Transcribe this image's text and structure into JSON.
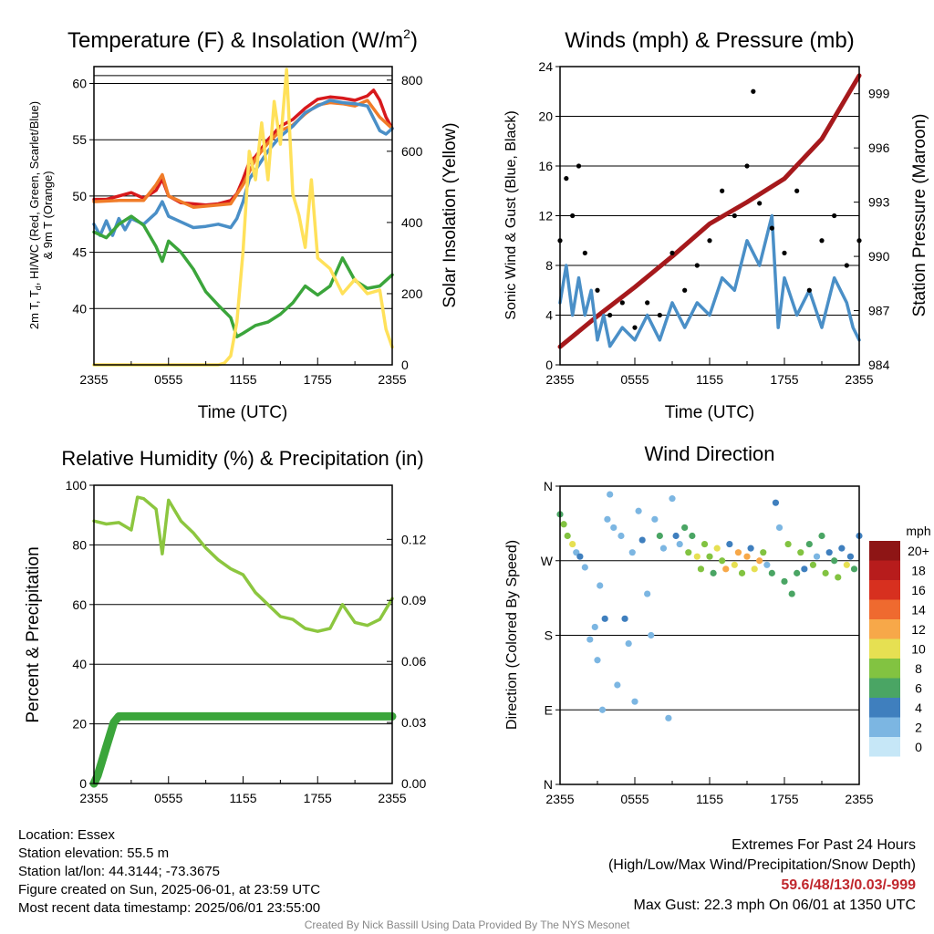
{
  "chart_data": [
    {
      "type": "line",
      "title": "Temperature (F) & Insolation (W/m²)",
      "title_main": "Temperature (F) & Insolation (W/m",
      "title_sup": "2",
      "title_close": ")",
      "xlabel": "Time (UTC)",
      "ylabel_line1": "2m T, T",
      "ylabel_sub": "d",
      "ylabel_line1_rest": ", HI/WC (Red, Green, Scarlet/Blue)",
      "ylabel_line2": "& 9m T (Orange)",
      "y2label": "Solar Insolation (Yellow)",
      "x_ticks": [
        "2355",
        "0555",
        "1155",
        "1755",
        "2355"
      ],
      "y_ticks": [
        "40",
        "45",
        "50",
        "55",
        "60"
      ],
      "y2_ticks": [
        "0",
        "200",
        "400",
        "600",
        "800"
      ],
      "ylim": [
        35,
        61.5
      ],
      "y2lim": [
        0,
        838
      ],
      "series": [
        {
          "color": "#d7191c",
          "x": [
            0,
            1,
            2,
            3,
            4,
            5,
            5.5,
            6,
            7,
            8,
            9,
            10,
            11,
            11.5,
            12,
            12.5,
            13,
            14,
            15,
            16,
            17,
            18,
            19,
            20,
            21,
            22,
            22.5,
            23,
            23.5,
            24
          ],
          "values": [
            49.7,
            49.7,
            50,
            50.3,
            49.8,
            50.5,
            51.5,
            50,
            49.4,
            49.3,
            49.2,
            49.3,
            49.6,
            50.2,
            51.5,
            53,
            53.5,
            55,
            56.2,
            56.8,
            57.8,
            58.6,
            58.8,
            58.7,
            58.5,
            58.9,
            59.4,
            58.5,
            57,
            56
          ]
        },
        {
          "color": "#f07c29",
          "x": [
            0,
            2,
            4,
            5,
            5.5,
            6,
            8,
            11,
            12,
            13,
            14,
            15,
            16,
            17,
            18,
            19,
            20,
            21,
            22,
            23,
            24
          ],
          "values": [
            49.5,
            49.6,
            49.6,
            51,
            51.9,
            50,
            49,
            49.3,
            51,
            53.3,
            54.7,
            55.8,
            56.3,
            57.3,
            58.1,
            58.3,
            58.2,
            58,
            58.5,
            57,
            56
          ]
        },
        {
          "color": "#4a8fc7",
          "x": [
            0,
            0.5,
            1,
            1.5,
            2,
            2.5,
            3,
            4,
            5,
            5.5,
            6,
            7,
            8,
            9,
            10,
            11,
            11.5,
            12,
            12.5,
            13,
            14,
            15,
            16,
            17,
            18,
            19,
            20,
            21,
            22,
            23,
            23.5,
            24
          ],
          "values": [
            47.5,
            46.5,
            47.8,
            46.5,
            48,
            47,
            48,
            47.5,
            48.5,
            49.5,
            48.2,
            47.7,
            47.2,
            47.3,
            47.5,
            47.2,
            48,
            49.5,
            51.5,
            52.3,
            54,
            55.3,
            56.2,
            57.4,
            58,
            58.5,
            58.3,
            58.2,
            58,
            55.8,
            55.5,
            56
          ]
        },
        {
          "color": "#3ba53b",
          "x": [
            0,
            1,
            2,
            3,
            4,
            5,
            5.5,
            6,
            7,
            8,
            9,
            10,
            11,
            11.5,
            12,
            13,
            14,
            15,
            16,
            17,
            18,
            19,
            20,
            21,
            22,
            23,
            24
          ],
          "values": [
            46.8,
            46.3,
            47.5,
            48.2,
            47.4,
            45.5,
            44.2,
            46,
            45,
            43.5,
            41.5,
            40.3,
            39.2,
            37.5,
            37.8,
            38.5,
            38.8,
            39.5,
            40.5,
            42,
            41.2,
            42,
            44.5,
            42.5,
            41.8,
            42,
            43
          ]
        },
        {
          "color": "#ffe15a",
          "x": [
            0,
            2,
            4,
            6,
            8,
            9,
            10,
            10.5,
            11,
            11.5,
            12,
            12.5,
            13,
            13.5,
            14,
            14.5,
            15,
            15.5,
            16,
            16.5,
            17,
            17.5,
            18,
            19,
            20,
            21,
            22,
            23,
            23.5,
            24
          ],
          "values": [
            0,
            0,
            0,
            0,
            0,
            0,
            0,
            5,
            25,
            120,
            320,
            600,
            520,
            680,
            520,
            740,
            620,
            830,
            480,
            420,
            330,
            520,
            300,
            270,
            200,
            240,
            200,
            210,
            100,
            50
          ]
        }
      ]
    },
    {
      "type": "line",
      "title": "Winds (mph) & Pressure (mb)",
      "xlabel": "Time (UTC)",
      "ylabel": "Sonic Wind & Gust (Blue, Black)",
      "y2label": "Station Pressure (Maroon)",
      "x_ticks": [
        "2355",
        "0555",
        "1155",
        "1755",
        "2355"
      ],
      "y_ticks": [
        "0",
        "4",
        "8",
        "12",
        "16",
        "20",
        "24"
      ],
      "y2_ticks": [
        "984",
        "987",
        "990",
        "993",
        "996",
        "999"
      ],
      "ylim": [
        0,
        24
      ],
      "y2lim": [
        984,
        1000.5
      ],
      "series": [
        {
          "color": "#a6191c",
          "x": [
            0,
            3,
            6,
            9,
            12,
            15,
            18,
            21,
            24
          ],
          "values": [
            985,
            986.7,
            988.3,
            990,
            991.8,
            993,
            994.3,
            996.5,
            1000
          ]
        },
        {
          "color": "#4a8fc7",
          "x": [
            0,
            0.5,
            1,
            1.5,
            2,
            2.5,
            3,
            3.5,
            4,
            5,
            6,
            7,
            8,
            9,
            10,
            11,
            12,
            13,
            14,
            15,
            16,
            17,
            17.5,
            18,
            19,
            20,
            21,
            22,
            23,
            23.5,
            24
          ],
          "values": [
            5,
            8,
            4,
            7,
            4,
            6,
            2,
            4,
            1.5,
            3,
            2,
            4,
            2,
            5,
            3,
            5,
            4,
            7,
            6,
            10,
            8,
            12,
            3,
            7,
            4,
            6,
            3,
            7,
            5,
            3,
            2
          ]
        },
        {
          "color": "#000000",
          "x": [
            0,
            0.5,
            1,
            1.5,
            2,
            3,
            4,
            5,
            6,
            7,
            8,
            9,
            10,
            11,
            12,
            13,
            14,
            15,
            15.5,
            16,
            17,
            18,
            19,
            20,
            21,
            22,
            23,
            24
          ],
          "values": [
            10,
            15,
            12,
            16,
            9,
            6,
            4,
            5,
            3,
            5,
            4,
            9,
            6,
            8,
            10,
            14,
            12,
            16,
            22,
            13,
            11,
            9,
            14,
            6,
            10,
            12,
            8,
            10
          ]
        }
      ]
    },
    {
      "type": "line",
      "title": "Relative Humidity (%) & Precipitation (in)",
      "ylabel": "Percent & Precipitation",
      "x_ticks": [
        "2355",
        "0555",
        "1155",
        "1755",
        "2355"
      ],
      "y_ticks": [
        "0",
        "20",
        "40",
        "60",
        "80",
        "100"
      ],
      "y2_ticks": [
        "0.00",
        "0.03",
        "0.06",
        "0.09",
        "0.12"
      ],
      "ylim": [
        0,
        100
      ],
      "y2lim": [
        0,
        0.1466
      ],
      "series": [
        {
          "color": "#8cc63f",
          "x": [
            0,
            1,
            2,
            3,
            3.5,
            4,
            5,
            5.5,
            6,
            7,
            8,
            9,
            10,
            11,
            12,
            13,
            14,
            15,
            16,
            17,
            18,
            19,
            20,
            21,
            22,
            23,
            24
          ],
          "values": [
            88,
            87,
            87.5,
            85,
            96,
            95.5,
            92,
            77,
            95,
            88,
            84,
            79,
            75,
            72,
            70,
            64,
            60,
            56,
            55,
            52,
            51,
            52,
            60,
            54,
            53,
            55,
            62
          ]
        },
        {
          "color": "#3ba53b",
          "x": [
            0,
            0.3,
            0.6,
            1,
            1.3,
            1.6,
            2,
            24
          ],
          "values": [
            0,
            0.004,
            0.01,
            0.018,
            0.024,
            0.03,
            0.033,
            0.033
          ]
        }
      ]
    },
    {
      "type": "scatter",
      "title": "Wind Direction",
      "ylabel": "Direction (Colored By Speed)",
      "x_ticks": [
        "2355",
        "0555",
        "1155",
        "1755",
        "2355"
      ],
      "y_ticks": [
        "N",
        "E",
        "S",
        "W",
        "N"
      ],
      "ylim": [
        0,
        360
      ],
      "legend_title": "mph",
      "legend_labels": [
        "0",
        "2",
        "4",
        "6",
        "8",
        "10",
        "12",
        "14",
        "16",
        "18",
        "20+"
      ],
      "legend_colors": [
        "#c6e7f7",
        "#7cb6e2",
        "#3f7fbe",
        "#4aa564",
        "#82c341",
        "#e6e052",
        "#f7a849",
        "#ef6a2f",
        "#d7301f",
        "#b71c1c",
        "#8e1515"
      ],
      "points": [
        [
          0,
          326,
          6
        ],
        [
          0.3,
          314,
          8
        ],
        [
          0.6,
          300,
          8
        ],
        [
          1,
          290,
          10
        ],
        [
          1.3,
          280,
          2
        ],
        [
          1.6,
          275,
          4
        ],
        [
          2,
          262,
          2
        ],
        [
          2.4,
          175,
          2
        ],
        [
          2.8,
          190,
          2
        ],
        [
          3,
          150,
          2
        ],
        [
          3.2,
          240,
          2
        ],
        [
          3.4,
          90,
          2
        ],
        [
          3.6,
          200,
          4
        ],
        [
          3.8,
          320,
          2
        ],
        [
          4,
          350,
          2
        ],
        [
          4.3,
          310,
          2
        ],
        [
          4.6,
          120,
          2
        ],
        [
          4.9,
          300,
          2
        ],
        [
          5.2,
          200,
          4
        ],
        [
          5.5,
          170,
          2
        ],
        [
          5.8,
          280,
          2
        ],
        [
          6,
          100,
          2
        ],
        [
          6.3,
          330,
          2
        ],
        [
          6.6,
          295,
          4
        ],
        [
          7,
          230,
          2
        ],
        [
          7.3,
          180,
          2
        ],
        [
          7.6,
          320,
          2
        ],
        [
          8,
          300,
          6
        ],
        [
          8.3,
          285,
          2
        ],
        [
          8.7,
          80,
          2
        ],
        [
          9,
          345,
          2
        ],
        [
          9.3,
          300,
          4
        ],
        [
          9.6,
          290,
          2
        ],
        [
          10,
          310,
          6
        ],
        [
          10.3,
          280,
          8
        ],
        [
          10.6,
          300,
          6
        ],
        [
          11,
          275,
          10
        ],
        [
          11.3,
          260,
          8
        ],
        [
          11.6,
          290,
          8
        ],
        [
          12,
          275,
          8
        ],
        [
          12.3,
          255,
          6
        ],
        [
          12.6,
          285,
          10
        ],
        [
          13,
          270,
          8
        ],
        [
          13.3,
          260,
          12
        ],
        [
          13.6,
          290,
          4
        ],
        [
          14,
          265,
          10
        ],
        [
          14.3,
          280,
          12
        ],
        [
          14.6,
          255,
          8
        ],
        [
          15,
          275,
          12
        ],
        [
          15.3,
          285,
          4
        ],
        [
          15.6,
          260,
          10
        ],
        [
          16,
          270,
          12
        ],
        [
          16.3,
          280,
          8
        ],
        [
          16.6,
          265,
          2
        ],
        [
          17,
          255,
          6
        ],
        [
          17.3,
          340,
          4
        ],
        [
          17.6,
          310,
          2
        ],
        [
          18,
          245,
          6
        ],
        [
          18.3,
          290,
          8
        ],
        [
          18.6,
          230,
          6
        ],
        [
          19,
          255,
          6
        ],
        [
          19.3,
          280,
          8
        ],
        [
          19.6,
          260,
          4
        ],
        [
          20,
          290,
          6
        ],
        [
          20.3,
          265,
          8
        ],
        [
          20.6,
          275,
          2
        ],
        [
          21,
          300,
          6
        ],
        [
          21.3,
          255,
          8
        ],
        [
          21.6,
          280,
          4
        ],
        [
          22,
          270,
          6
        ],
        [
          22.3,
          250,
          8
        ],
        [
          22.6,
          285,
          4
        ],
        [
          23,
          265,
          10
        ],
        [
          23.3,
          275,
          4
        ],
        [
          23.6,
          260,
          6
        ],
        [
          24,
          300,
          4
        ]
      ]
    }
  ],
  "footer": {
    "location": "Location: Essex",
    "elevation": "Station elevation: 55.5 m",
    "latlon": "Station lat/lon: 44.3144; -73.3675",
    "created": "Figure created on Sun, 2025-06-01, at 23:59 UTC",
    "recent": "Most recent data timestamp: 2025/06/01 23:55:00",
    "extremes_title": "Extremes For Past 24 Hours",
    "extremes_sub": "(High/Low/Max Wind/Precipitation/Snow Depth)",
    "extremes_value": "59.6/48/13/0.03/-999",
    "max_gust": "Max Gust: 22.3 mph On 06/01 at 1350 UTC",
    "credit": "Created By Nick Bassill Using Data Provided By The NYS Mesonet"
  }
}
